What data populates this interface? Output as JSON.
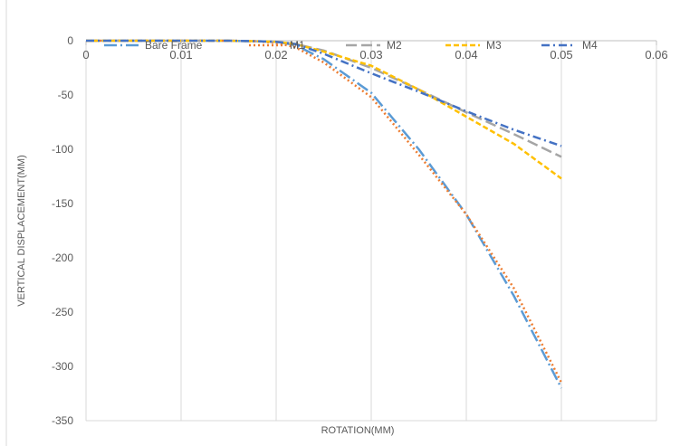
{
  "chart_data": {
    "type": "line",
    "title": "",
    "xlabel": "ROTATION(MM)",
    "ylabel": "VERTICAL DISPLACEMENT(MM)",
    "xlim": [
      0,
      0.06
    ],
    "ylim": [
      -350,
      0
    ],
    "x_ticks": [
      0,
      0.01,
      0.02,
      0.03,
      0.04,
      0.05,
      0.06
    ],
    "x_tick_labels": [
      "0",
      "0.01",
      "0.02",
      "0.03",
      "0.04",
      "0.05",
      "0.06"
    ],
    "y_ticks": [
      0,
      -50,
      -100,
      -150,
      -200,
      -250,
      -300,
      -350
    ],
    "y_tick_labels": [
      "0",
      "-50",
      "-100",
      "-150",
      "-200",
      "-250",
      "-300",
      "-350"
    ],
    "grid": "vertical",
    "legend_position": "top",
    "series": [
      {
        "name": "Bare Frame",
        "color": "#5B9BD5",
        "dash": "long-dash-dot",
        "x": [
          0,
          0.005,
          0.01,
          0.015,
          0.018,
          0.02,
          0.022,
          0.025,
          0.03,
          0.035,
          0.04,
          0.045,
          0.05
        ],
        "y": [
          0,
          0,
          0,
          0,
          -0.5,
          -1,
          -4,
          -17,
          -48,
          -100,
          -160,
          -235,
          -320
        ]
      },
      {
        "name": "M1",
        "color": "#ED7D31",
        "dash": "dotted",
        "x": [
          0,
          0.005,
          0.01,
          0.015,
          0.018,
          0.02,
          0.022,
          0.025,
          0.03,
          0.035,
          0.04,
          0.045,
          0.05
        ],
        "y": [
          0,
          0,
          0,
          0,
          -0.5,
          -2,
          -6,
          -20,
          -52,
          -105,
          -160,
          -228,
          -315
        ]
      },
      {
        "name": "M2",
        "color": "#A5A5A5",
        "dash": "long-dash",
        "x": [
          0,
          0.005,
          0.01,
          0.015,
          0.018,
          0.02,
          0.022,
          0.025,
          0.03,
          0.035,
          0.04,
          0.045,
          0.05
        ],
        "y": [
          0,
          0,
          0,
          0,
          -0.5,
          -1,
          -3,
          -9,
          -25,
          -45,
          -66,
          -86,
          -107
        ]
      },
      {
        "name": "M3",
        "color": "#FFC000",
        "dash": "short-dash",
        "x": [
          0,
          0.005,
          0.01,
          0.015,
          0.018,
          0.02,
          0.022,
          0.025,
          0.03,
          0.035,
          0.04,
          0.045,
          0.05
        ],
        "y": [
          0,
          0,
          0,
          0,
          -0.5,
          -1,
          -3,
          -10,
          -23,
          -45,
          -70,
          -95,
          -127
        ]
      },
      {
        "name": "M4",
        "color": "#4472C4",
        "dash": "dash-dot",
        "x": [
          0,
          0.005,
          0.01,
          0.015,
          0.018,
          0.02,
          0.022,
          0.025,
          0.03,
          0.035,
          0.04,
          0.045,
          0.05
        ],
        "y": [
          0,
          0,
          0,
          0,
          -0.5,
          -1,
          -3,
          -12,
          -30,
          -47,
          -65,
          -82,
          -97
        ]
      }
    ]
  }
}
